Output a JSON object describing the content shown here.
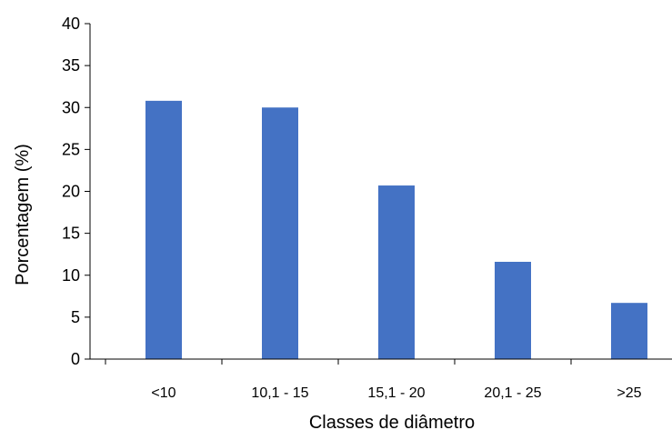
{
  "chart_data": {
    "type": "bar",
    "title": "",
    "xlabel": "Classes de diâmetro",
    "ylabel": "Porcentagem  (%)",
    "categories": [
      "<10",
      "10,1 - 15",
      "15,1 - 20",
      "20,1 - 25",
      ">25"
    ],
    "values": [
      30.8,
      30.0,
      20.7,
      11.6,
      6.7
    ],
    "ylim": [
      0,
      40
    ],
    "yticks": [
      0,
      5,
      10,
      15,
      20,
      25,
      30,
      35,
      40
    ],
    "grid": false,
    "legend": "none",
    "colors": {
      "bar": "#4472C4",
      "axis": "#000000"
    }
  }
}
